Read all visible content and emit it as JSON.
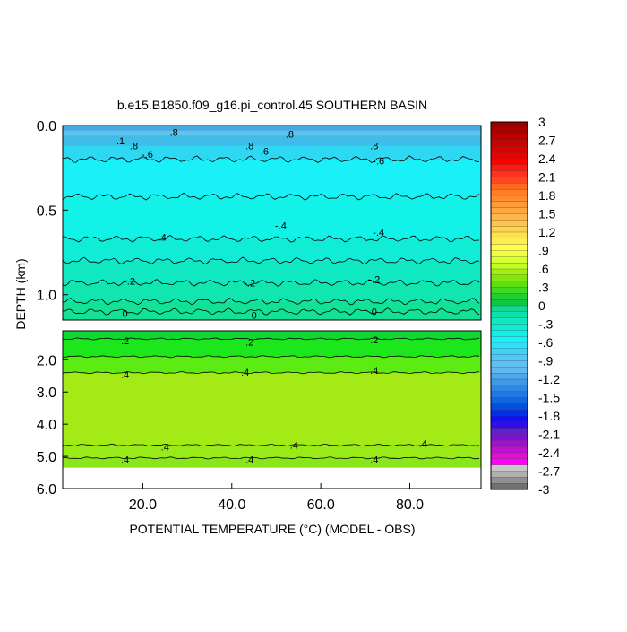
{
  "chart_data": {
    "type": "heatmap",
    "title": "b.e15.B1850.f09_g16.pi_control.45 SOUTHERN BASIN",
    "xlabel": "POTENTIAL TEMPERATURE (°C) (MODEL - OBS)",
    "ylabel": "DEPTH (km)",
    "xlim": [
      2,
      96
    ],
    "x_ticks": [
      "20.0",
      "40.0",
      "60.0",
      "80.0"
    ],
    "upper_panel": {
      "ylim": [
        0.0,
        1.15
      ],
      "y_ticks": [
        "0.0",
        "0.5",
        "1.0"
      ],
      "bands": [
        {
          "from": 0.0,
          "to": 0.03,
          "color": "#4aa8e0"
        },
        {
          "from": 0.03,
          "to": 0.06,
          "color": "#5ec4ee"
        },
        {
          "from": 0.06,
          "to": 0.12,
          "color": "#3fbde8"
        },
        {
          "from": 0.12,
          "to": 0.2,
          "color": "#2fd8f2"
        },
        {
          "from": 0.2,
          "to": 0.42,
          "color": "#19f0f8"
        },
        {
          "from": 0.42,
          "to": 0.67,
          "color": "#12f2e8"
        },
        {
          "from": 0.67,
          "to": 0.8,
          "color": "#10ecd6"
        },
        {
          "from": 0.8,
          "to": 0.93,
          "color": "#10e8c2"
        },
        {
          "from": 0.93,
          "to": 1.04,
          "color": "#10e6ad"
        },
        {
          "from": 1.04,
          "to": 1.15,
          "color": "#12e294"
        }
      ],
      "contours": [
        0.2,
        0.42,
        0.67,
        0.8,
        0.93,
        1.04,
        1.1
      ],
      "labels": [
        {
          "text": ".1",
          "x": 15,
          "y": 0.09
        },
        {
          "text": ".8",
          "x": 27,
          "y": 0.04
        },
        {
          "text": ".8",
          "x": 53,
          "y": 0.05
        },
        {
          "text": ".8",
          "x": 18,
          "y": 0.12
        },
        {
          "text": ".8",
          "x": 44,
          "y": 0.12
        },
        {
          "text": ".8",
          "x": 72,
          "y": 0.12
        },
        {
          "text": "-.6",
          "x": 21,
          "y": 0.17
        },
        {
          "text": "-.6",
          "x": 47,
          "y": 0.15
        },
        {
          "text": "-.6",
          "x": 73,
          "y": 0.21
        },
        {
          "text": "-.4",
          "x": 24,
          "y": 0.66
        },
        {
          "text": "-.4",
          "x": 51,
          "y": 0.59
        },
        {
          "text": "-.4",
          "x": 73,
          "y": 0.63
        },
        {
          "text": "-.2",
          "x": 17,
          "y": 0.92
        },
        {
          "text": "-.2",
          "x": 44,
          "y": 0.93
        },
        {
          "text": "-.2",
          "x": 72,
          "y": 0.91
        },
        {
          "text": "0",
          "x": 16,
          "y": 1.11
        },
        {
          "text": "0",
          "x": 45,
          "y": 1.12
        },
        {
          "text": "0",
          "x": 72,
          "y": 1.1
        }
      ]
    },
    "lower_panel": {
      "ylim": [
        1.1,
        6.0
      ],
      "y_ticks": [
        "2.0",
        "3.0",
        "4.0",
        "5.0",
        "6.0"
      ],
      "bands": [
        {
          "from": 1.1,
          "to": 1.35,
          "color": "#10d832"
        },
        {
          "from": 1.35,
          "to": 1.9,
          "color": "#1ce61c"
        },
        {
          "from": 1.9,
          "to": 2.4,
          "color": "#5cec14"
        },
        {
          "from": 2.4,
          "to": 4.65,
          "color": "#a4ea16"
        },
        {
          "from": 4.65,
          "to": 5.05,
          "color": "#98ea18"
        },
        {
          "from": 5.05,
          "to": 5.35,
          "color": "#8ae61a"
        }
      ],
      "contours": [
        1.35,
        1.9,
        2.4,
        4.65,
        5.05
      ],
      "labels": [
        {
          "text": ".2",
          "x": 16,
          "y": 1.4
        },
        {
          "text": ".2",
          "x": 44,
          "y": 1.45
        },
        {
          "text": ".2",
          "x": 72,
          "y": 1.38
        },
        {
          "text": ".4",
          "x": 16,
          "y": 2.45
        },
        {
          "text": ".4",
          "x": 43,
          "y": 2.38
        },
        {
          "text": ".4",
          "x": 72,
          "y": 2.32
        },
        {
          "text": ".4",
          "x": 25,
          "y": 4.7
        },
        {
          "text": ".4",
          "x": 54,
          "y": 4.65
        },
        {
          "text": ".4",
          "x": 83,
          "y": 4.6
        },
        {
          "text": ".4",
          "x": 16,
          "y": 5.1
        },
        {
          "text": ".4",
          "x": 44,
          "y": 5.1
        },
        {
          "text": ".4",
          "x": 72,
          "y": 5.1
        }
      ]
    },
    "colorbar": {
      "labels": [
        "3",
        "2.7",
        "2.4",
        "2.1",
        "1.8",
        "1.5",
        "1.2",
        ".9",
        ".6",
        ".3",
        "0",
        "-.3",
        "-.6",
        "-.9",
        "-1.2",
        "-1.5",
        "-1.8",
        "-2.1",
        "-2.4",
        "-2.7",
        "-3"
      ],
      "colors": [
        "#990000",
        "#aa0000",
        "#bb0000",
        "#cc0000",
        "#dd0000",
        "#ee0000",
        "#ff0000",
        "#ff1a10",
        "#ff3020",
        "#ff4a20",
        "#ff6a20",
        "#ff7e26",
        "#ff8c30",
        "#ff9a38",
        "#ffa840",
        "#ffb648",
        "#ffc44c",
        "#ffd24c",
        "#ffe050",
        "#ffee50",
        "#ffff50",
        "#f0ff40",
        "#d8ff30",
        "#c0ff20",
        "#a0f010",
        "#80e810",
        "#5ee010",
        "#40d820",
        "#20d030",
        "#10c840",
        "#10d890",
        "#10e0a8",
        "#10e8c0",
        "#10ecd4",
        "#12f0e6",
        "#19f0f8",
        "#30e0f8",
        "#40d0f8",
        "#50c8f8",
        "#60c0f4",
        "#60b8f0",
        "#50a8ec",
        "#4098e8",
        "#3088e4",
        "#2078e0",
        "#1068dc",
        "#0050e0",
        "#0030e8",
        "#1010f0",
        "#3010e0",
        "#6020d0",
        "#8010d0",
        "#a010d0",
        "#c010d0",
        "#e010d0",
        "#ff00ff",
        "#c8c8c8",
        "#b0b0b0",
        "#909090",
        "#707070"
      ]
    }
  }
}
